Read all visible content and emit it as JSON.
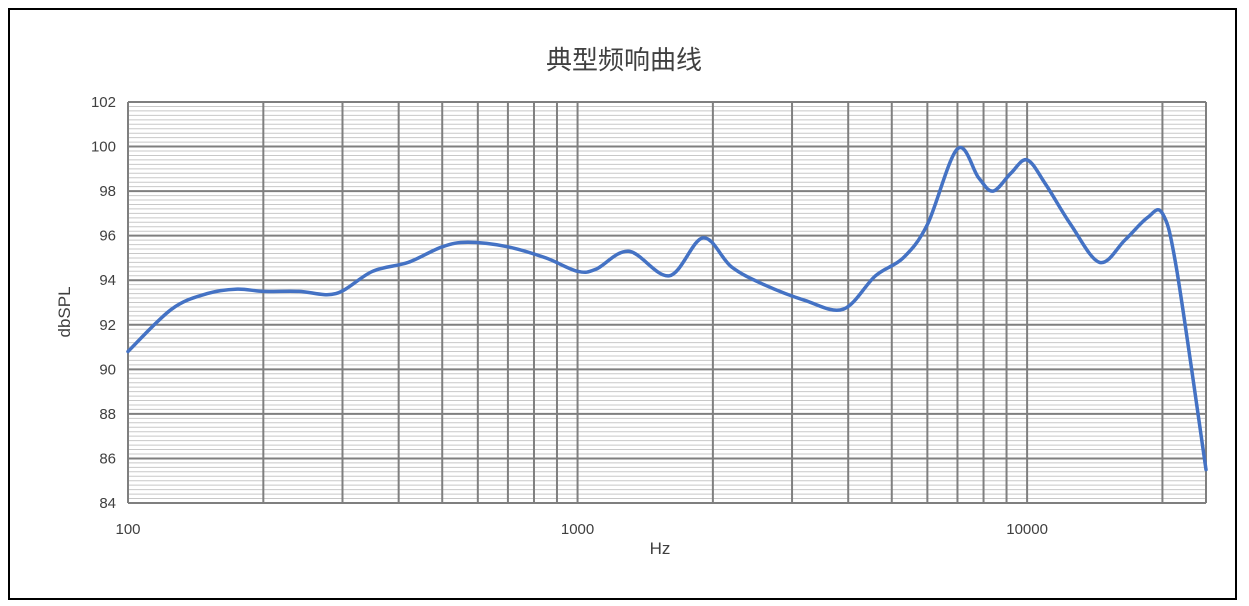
{
  "chart_data": {
    "type": "line",
    "title": "典型频响曲线",
    "xlabel": "Hz",
    "ylabel": "dbSPL",
    "x_scale": "log",
    "xlim": [
      100,
      25000
    ],
    "ylim": [
      84,
      102
    ],
    "x_ticks": [
      "100",
      "1000",
      "10000"
    ],
    "y_ticks": [
      "84",
      "86",
      "88",
      "90",
      "92",
      "94",
      "96",
      "98",
      "100",
      "102"
    ],
    "grid": true,
    "legend": "none",
    "colors": {
      "line": "#4472C4",
      "major_grid": "#7f7f7f",
      "minor_grid": "#c8c8c8"
    },
    "series": [
      {
        "x": [
          100,
          125,
          150,
          175,
          200,
          240,
          290,
          350,
          420,
          500,
          570,
          700,
          850,
          1000,
          1100,
          1300,
          1600,
          1900,
          2200,
          2600,
          3200,
          3900,
          4600,
          5300,
          6000,
          7000,
          7800,
          8400,
          9200,
          10000,
          11000,
          12500,
          14500,
          16500,
          18500,
          20000,
          21500,
          25000
        ],
        "y": [
          90.8,
          92.7,
          93.4,
          93.6,
          93.5,
          93.5,
          93.4,
          94.4,
          94.8,
          95.5,
          95.7,
          95.5,
          95.0,
          94.4,
          94.5,
          95.3,
          94.2,
          95.9,
          94.6,
          93.8,
          93.1,
          92.7,
          94.2,
          95.0,
          96.5,
          99.9,
          98.6,
          98.0,
          98.8,
          99.4,
          98.3,
          96.5,
          94.8,
          95.8,
          96.8,
          97.0,
          94.5,
          85.5
        ]
      }
    ]
  }
}
